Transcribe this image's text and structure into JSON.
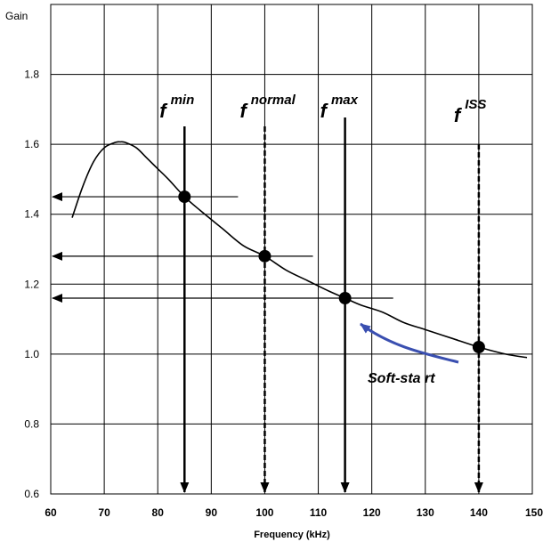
{
  "chart_data": {
    "type": "line",
    "xlabel": "Frequency (kHz)",
    "ylabel": "Gain",
    "xlim": [
      60,
      150
    ],
    "ylim": [
      0.6,
      2.0
    ],
    "x_ticks": [
      "60",
      "70",
      "80",
      "90",
      "100",
      "110",
      "120",
      "130",
      "140",
      "150"
    ],
    "y_ticks": [
      "0.6",
      "0.8",
      "1.0",
      "1.2",
      "1.4",
      "1.6",
      "1.8"
    ],
    "grid": true,
    "series": [
      {
        "x": [
          64,
          66,
          68,
          70,
          72,
          73,
          74,
          76,
          78,
          80,
          82,
          85,
          88,
          92,
          96,
          100,
          104,
          108,
          112,
          115,
          118,
          122,
          126,
          130,
          135,
          140,
          145,
          149
        ],
        "y": [
          1.39,
          1.48,
          1.55,
          1.59,
          1.605,
          1.607,
          1.605,
          1.59,
          1.56,
          1.53,
          1.5,
          1.45,
          1.41,
          1.36,
          1.31,
          1.28,
          1.24,
          1.21,
          1.18,
          1.16,
          1.14,
          1.12,
          1.09,
          1.07,
          1.045,
          1.02,
          1.0,
          0.99
        ],
        "color": "#000000"
      }
    ],
    "markers": [
      {
        "label": "f",
        "sup": "min",
        "x": 85,
        "gain": 1.45,
        "style": "solid"
      },
      {
        "label": "f",
        "sup": "normal",
        "x": 100,
        "gain": 1.28,
        "style": "dashed"
      },
      {
        "label": "f",
        "sup": "max",
        "x": 115,
        "gain": 1.16,
        "style": "solid"
      },
      {
        "label": "f",
        "sup": "ISS",
        "x": 140,
        "gain": 1.02,
        "style": "dashed"
      }
    ],
    "gain_readouts": [
      {
        "from_x": 95,
        "gain": 1.45
      },
      {
        "from_x": 109,
        "gain": 1.28
      },
      {
        "from_x": 124,
        "gain": 1.16
      }
    ],
    "annotation": {
      "text": "Soft-stа rt",
      "color": "#3a4fb0"
    }
  }
}
